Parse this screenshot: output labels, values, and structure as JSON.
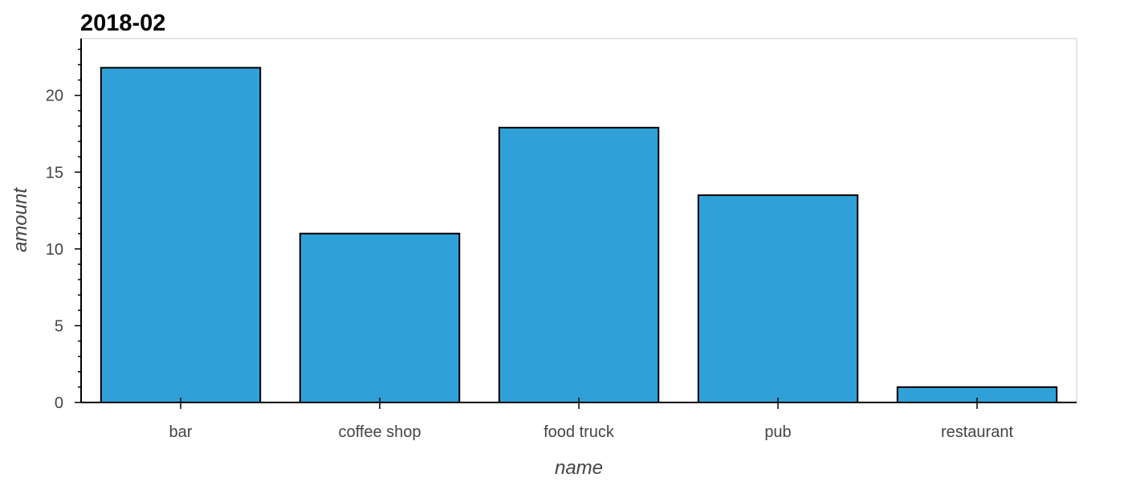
{
  "chart_data": {
    "type": "bar",
    "title": "2018-02",
    "xlabel": "name",
    "ylabel": "amount",
    "categories": [
      "bar",
      "coffee shop",
      "food truck",
      "pub",
      "restaurant"
    ],
    "values": [
      21.8,
      11.0,
      17.9,
      13.5,
      1.0
    ],
    "ylim": [
      0,
      23.7
    ],
    "yticks": [
      0,
      5,
      10,
      15,
      20
    ],
    "ytick_labels": [
      "0",
      "5",
      "10",
      "15",
      "20"
    ],
    "grid": false,
    "legend": "none",
    "colors": {
      "bar_fill": "#2fa1d8",
      "bar_stroke": "#000000",
      "plot_border": "#e5e5e5",
      "axis": "#000000",
      "text": "#444444"
    }
  }
}
